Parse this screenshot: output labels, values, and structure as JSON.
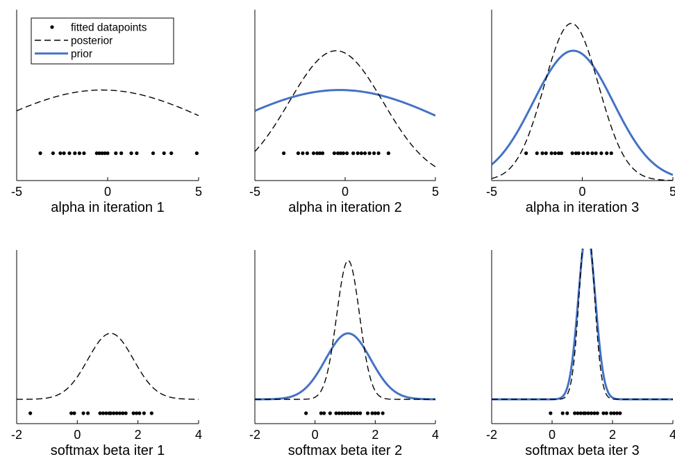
{
  "figure": {
    "legend": {
      "placement": "top-left",
      "entries": [
        {
          "label": "fitted datapoints",
          "marker": "dot",
          "color": "#000000"
        },
        {
          "label": "posterior",
          "line": "dashed",
          "color": "#000000"
        },
        {
          "label": "prior",
          "line": "solid",
          "color": "#4472c4"
        }
      ]
    },
    "colors": {
      "posterior": "#000000",
      "prior": "#4472c4",
      "points": "#000000",
      "axes": "#000000"
    }
  },
  "chart_data": [
    {
      "type": "line",
      "xlabel": "alpha in iteration 1",
      "xlim": [
        -5,
        5
      ],
      "xticks": [
        -5,
        0,
        5
      ],
      "tick_labels": [
        "-5",
        "0",
        "5"
      ],
      "ylim": [
        0,
        1
      ],
      "show_legend": true,
      "posterior": {
        "mean": -0.3,
        "sd": 6.5,
        "peak": 0.53,
        "base": 0.0
      },
      "prior": null,
      "points_y": 0.16,
      "points": [
        -3.7,
        -3.0,
        -2.6,
        -2.4,
        -2.1,
        -1.8,
        -1.55,
        -1.3,
        -0.6,
        -0.45,
        -0.3,
        -0.15,
        0.0,
        0.45,
        0.75,
        1.3,
        1.6,
        2.5,
        3.1,
        3.5,
        4.9
      ]
    },
    {
      "type": "line",
      "xlabel": "alpha in iteration 2",
      "xlim": [
        -5,
        5
      ],
      "xticks": [
        -5,
        0,
        5
      ],
      "tick_labels": [
        "-5",
        "0",
        "5"
      ],
      "ylim": [
        0,
        1
      ],
      "show_legend": false,
      "posterior": {
        "mean": -0.5,
        "sd": 2.6,
        "peak": 0.76,
        "base": 0.0
      },
      "prior": {
        "mean": -0.3,
        "sd": 6.5,
        "peak": 0.53,
        "base": 0.0
      },
      "points_y": 0.16,
      "points": [
        -3.4,
        -2.6,
        -2.35,
        -2.1,
        -1.75,
        -1.55,
        -1.4,
        -1.25,
        -0.6,
        -0.4,
        -0.25,
        -0.1,
        0.1,
        0.45,
        0.7,
        0.9,
        1.1,
        1.35,
        1.6,
        1.85,
        2.4
      ]
    },
    {
      "type": "line",
      "xlabel": "alpha in iteration 3",
      "xlim": [
        -5,
        5
      ],
      "xticks": [
        -5,
        0,
        5
      ],
      "tick_labels": [
        "-5",
        "0",
        "5"
      ],
      "ylim": [
        0,
        1
      ],
      "show_legend": false,
      "posterior": {
        "mean": -0.6,
        "sd": 1.5,
        "peak": 0.92,
        "base": 0.0
      },
      "prior": {
        "mean": -0.5,
        "sd": 2.2,
        "peak": 0.76,
        "base": 0.0
      },
      "points_y": 0.16,
      "points": [
        -3.1,
        -2.5,
        -2.2,
        -2.0,
        -1.7,
        -1.5,
        -1.3,
        -1.15,
        -0.55,
        -0.35,
        -0.2,
        0.05,
        0.3,
        0.55,
        0.75,
        1.05,
        1.35,
        1.6
      ]
    },
    {
      "type": "line",
      "xlabel": "softmax beta iter 1",
      "xlim": [
        -2,
        4
      ],
      "xticks": [
        -2,
        0,
        2,
        4
      ],
      "tick_labels": [
        "-2",
        "0",
        "2",
        "4"
      ],
      "ylim": [
        0,
        1
      ],
      "show_legend": false,
      "posterior": {
        "mean": 1.1,
        "sd": 0.75,
        "peak": 0.38,
        "base": 0.14
      },
      "prior": null,
      "points_y": 0.06,
      "points": [
        -1.55,
        -0.2,
        -0.1,
        0.2,
        0.35,
        0.75,
        0.85,
        0.95,
        1.05,
        1.1,
        1.2,
        1.3,
        1.4,
        1.5,
        1.6,
        1.85,
        1.95,
        2.05,
        2.2,
        2.45
      ]
    },
    {
      "type": "line",
      "xlabel": "softmax beta iter 2",
      "xlim": [
        -2,
        4
      ],
      "xticks": [
        -2,
        0,
        2,
        4
      ],
      "tick_labels": [
        "-2",
        "0",
        "2",
        "4"
      ],
      "ylim": [
        0,
        1
      ],
      "show_legend": false,
      "posterior": {
        "mean": 1.1,
        "sd": 0.38,
        "peak": 0.8,
        "base": 0.14
      },
      "prior": {
        "mean": 1.1,
        "sd": 0.75,
        "peak": 0.38,
        "base": 0.14
      },
      "points_y": 0.06,
      "points": [
        -0.3,
        0.2,
        0.3,
        0.5,
        0.7,
        0.8,
        0.9,
        1.0,
        1.1,
        1.2,
        1.3,
        1.4,
        1.5,
        1.75,
        1.9,
        2.0,
        2.1,
        2.25
      ]
    },
    {
      "type": "line",
      "xlabel": "softmax beta iter 3",
      "xlim": [
        -2,
        4
      ],
      "xticks": [
        -2,
        0,
        2,
        4
      ],
      "tick_labels": [
        "-2",
        "0",
        "2",
        "4"
      ],
      "ylim": [
        0,
        1
      ],
      "show_legend": false,
      "posterior": {
        "mean": 1.15,
        "sd": 0.24,
        "peak": 1.06,
        "base": 0.14
      },
      "prior": {
        "mean": 1.15,
        "sd": 0.28,
        "peak": 0.97,
        "base": 0.14
      },
      "points_y": 0.06,
      "points": [
        -0.05,
        0.35,
        0.5,
        0.75,
        0.85,
        0.95,
        1.05,
        1.1,
        1.2,
        1.3,
        1.4,
        1.5,
        1.7,
        1.8,
        1.95,
        2.05,
        2.15,
        2.25
      ]
    }
  ]
}
